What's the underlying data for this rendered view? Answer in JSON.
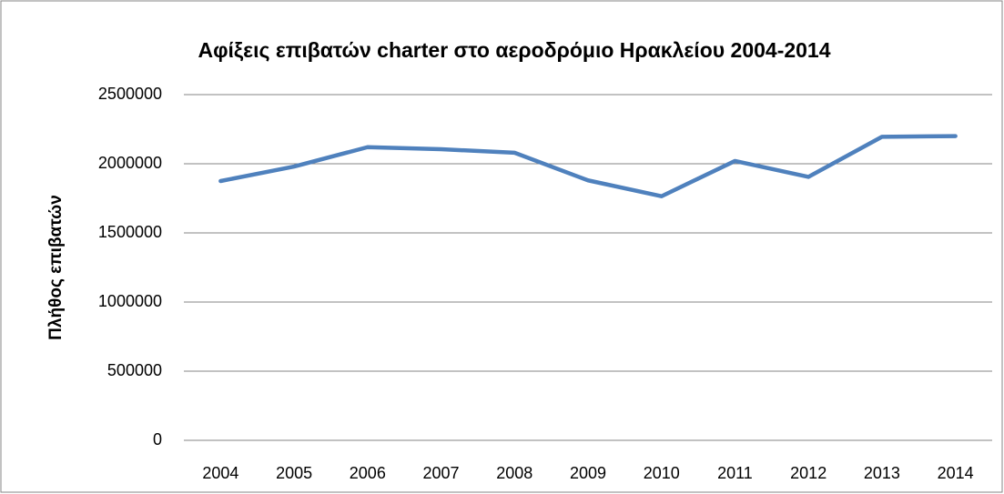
{
  "chart_data": {
    "type": "line",
    "title": "Αφίξεις επιβατών charter στο αεροδρόμιο Ηρακλείου 2004-2014",
    "ylabel": "Πλήθος επιβατών",
    "categories": [
      "2004",
      "2005",
      "2006",
      "2007",
      "2008",
      "2009",
      "2010",
      "2011",
      "2012",
      "2013",
      "2014"
    ],
    "values": [
      1875000,
      1980000,
      2120000,
      2105000,
      2080000,
      1880000,
      1765000,
      2020000,
      1905000,
      2195000,
      2200000
    ],
    "color": "#4f81bd",
    "ylim": [
      0,
      2500000
    ],
    "yticks": [
      0,
      500000,
      1000000,
      1500000,
      2000000,
      2500000
    ],
    "grid": true
  }
}
